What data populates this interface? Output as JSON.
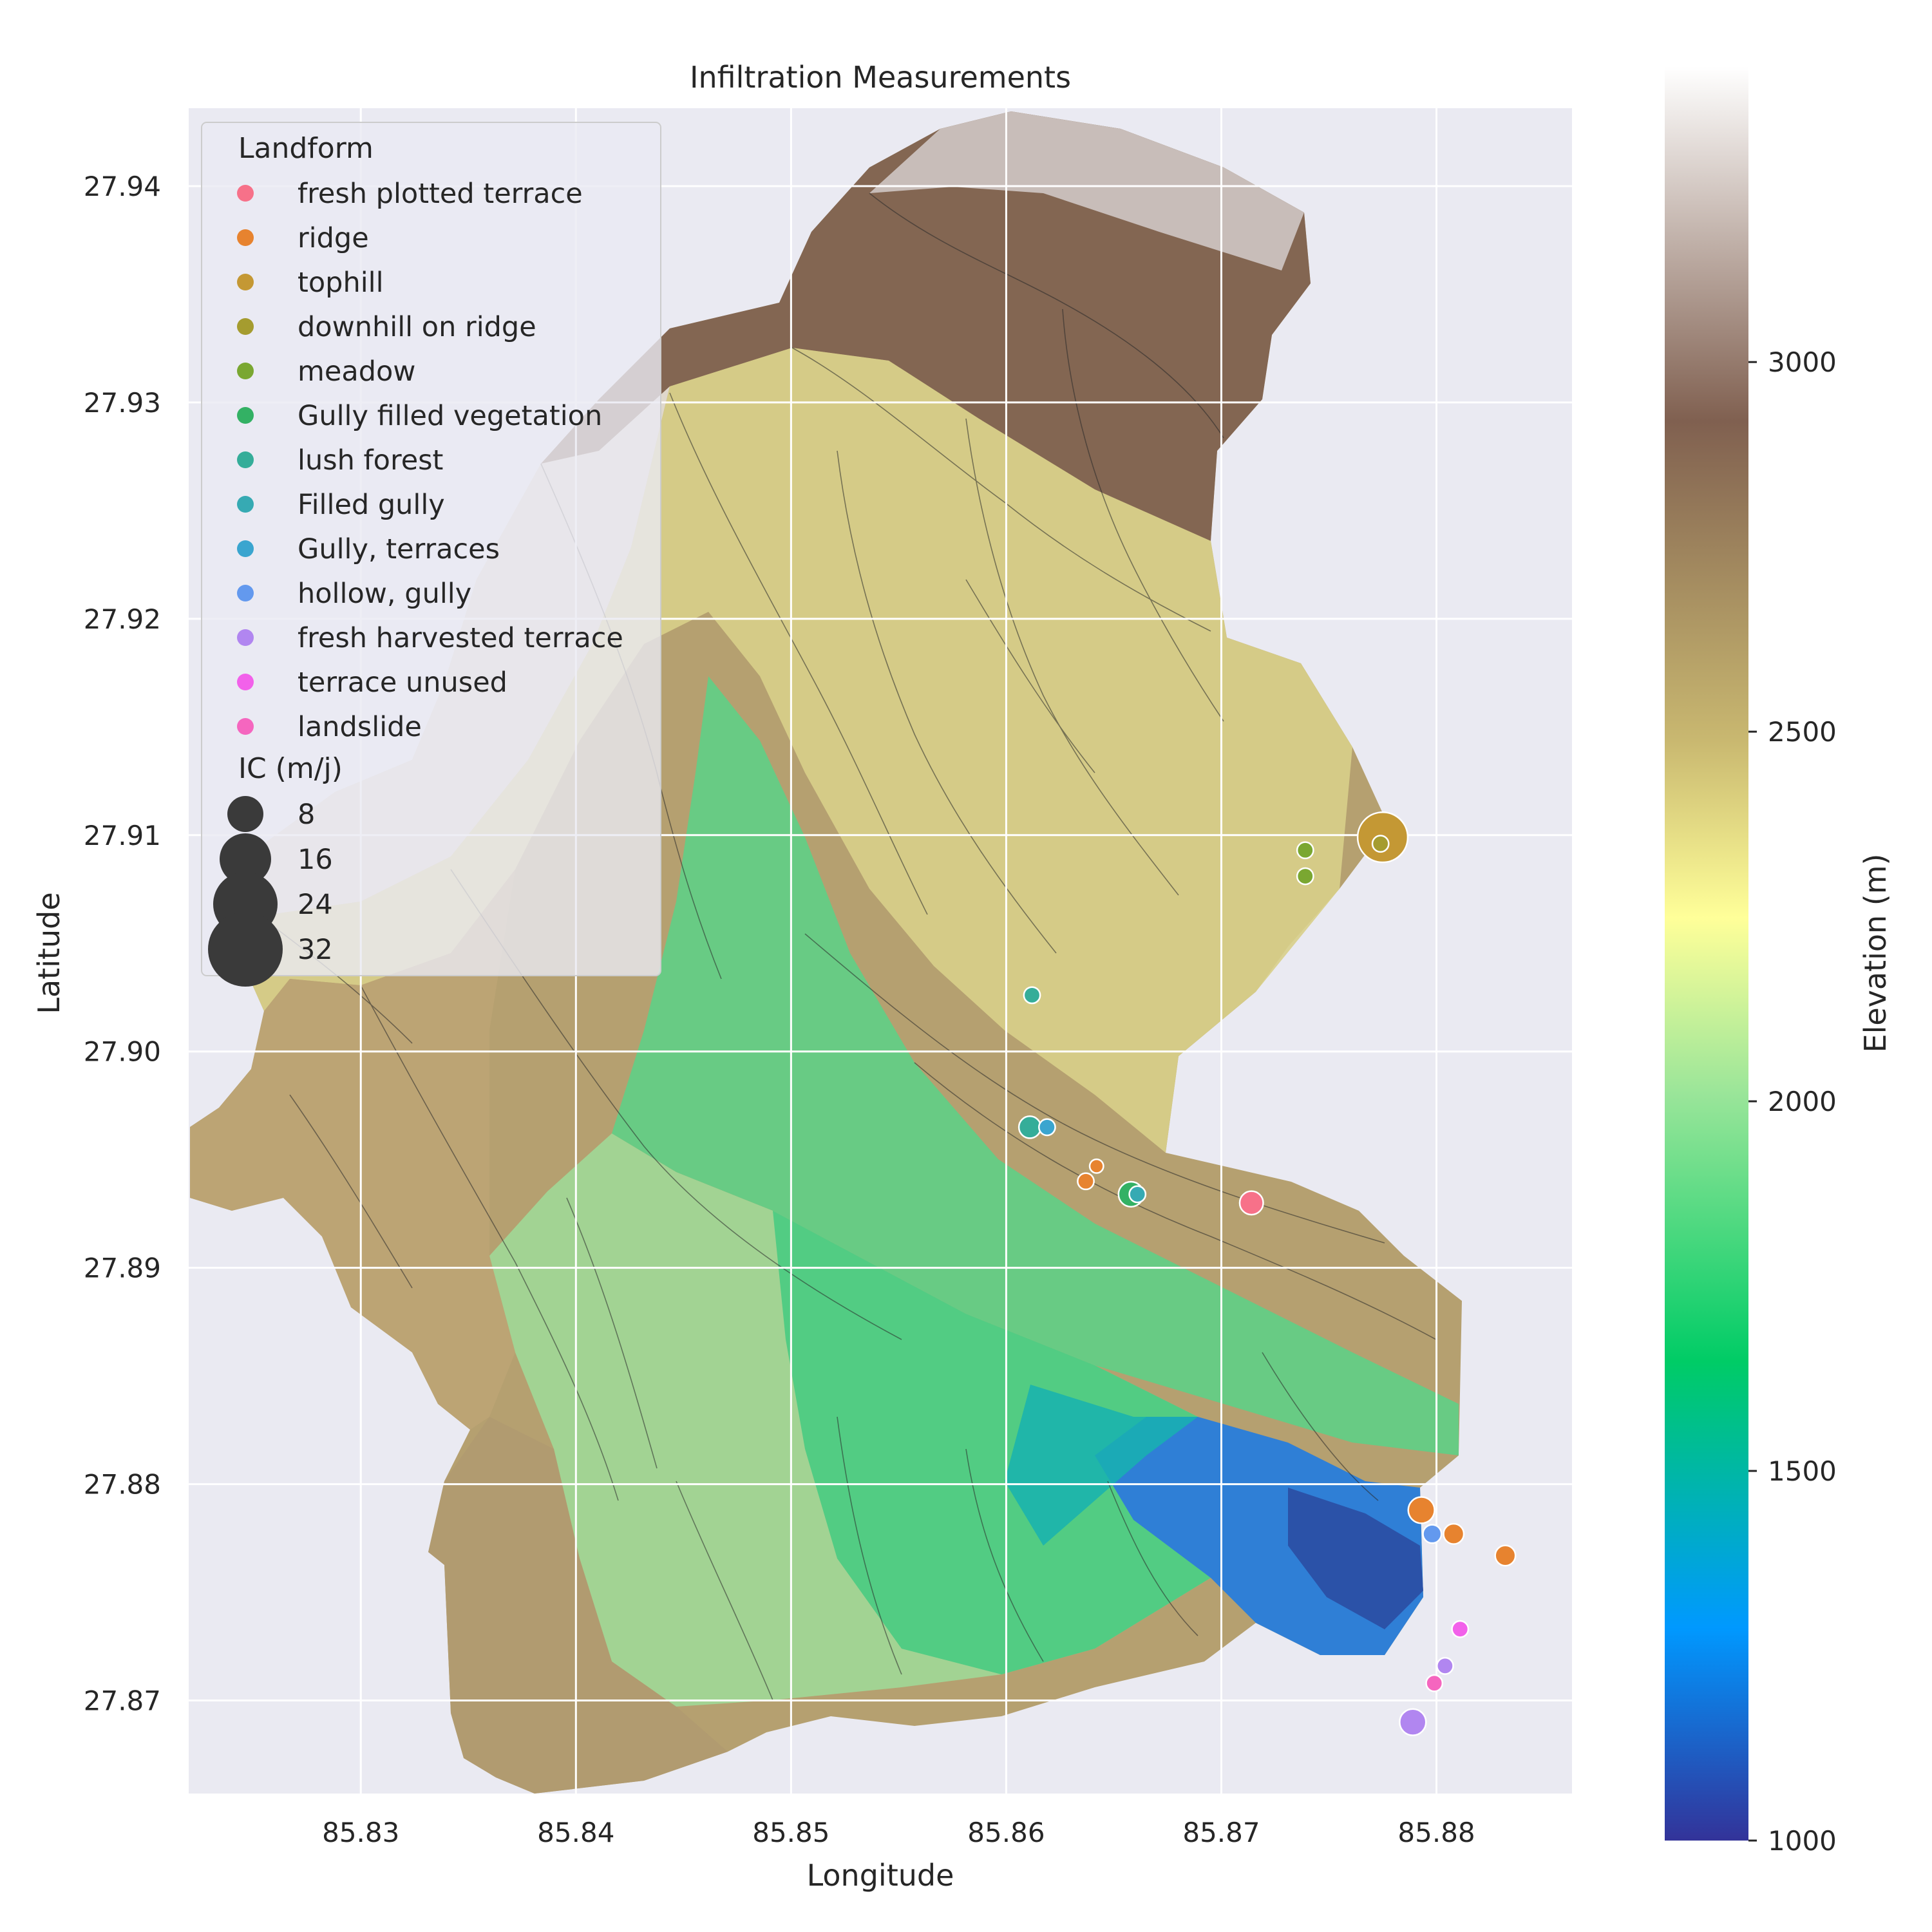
{
  "chart_data": {
    "type": "scatter",
    "title": "Infiltration Measurements",
    "xlabel": "Longitude",
    "ylabel": "Latitude",
    "xlim": [
      85.822,
      85.8863
    ],
    "ylim": [
      27.8657,
      27.9436
    ],
    "xticks": [
      {
        "value": 85.83,
        "label": "85.83"
      },
      {
        "value": 85.84,
        "label": "85.84"
      },
      {
        "value": 85.85,
        "label": "85.85"
      },
      {
        "value": 85.86,
        "label": "85.86"
      },
      {
        "value": 85.87,
        "label": "85.87"
      },
      {
        "value": 85.88,
        "label": "85.88"
      }
    ],
    "yticks": [
      {
        "value": 27.87,
        "label": "27.87"
      },
      {
        "value": 27.88,
        "label": "27.88"
      },
      {
        "value": 27.89,
        "label": "27.89"
      },
      {
        "value": 27.9,
        "label": "27.90"
      },
      {
        "value": 27.91,
        "label": "27.91"
      },
      {
        "value": 27.92,
        "label": "27.92"
      },
      {
        "value": 27.93,
        "label": "27.93"
      },
      {
        "value": 27.94,
        "label": "27.94"
      }
    ],
    "grid": true,
    "background": "elevation raster (terrain colormap, hillshade, contour lines)",
    "colorbar": {
      "label": "Elevation (m)",
      "range": [
        1000,
        3400
      ],
      "ticks": [
        {
          "value": 1000,
          "label": "1000"
        },
        {
          "value": 1500,
          "label": "1500"
        },
        {
          "value": 2000,
          "label": "2000"
        },
        {
          "value": 2500,
          "label": "2500"
        },
        {
          "value": 3000,
          "label": "3000"
        }
      ],
      "colormap": [
        "#333399",
        "#0099ff",
        "#00cc66",
        "#99e599",
        "#ffff99",
        "#806050",
        "#ffffff"
      ]
    },
    "legend": {
      "placement": "upper-left",
      "hue_title": "Landform",
      "size_title": "IC (m/j)",
      "size_entries": [
        {
          "label": "8",
          "value": 8
        },
        {
          "label": "16",
          "value": 16
        },
        {
          "label": "24",
          "value": 24
        },
        {
          "label": "32",
          "value": 32
        }
      ]
    },
    "categories": [
      {
        "name": "fresh plotted terrace",
        "color": "#f77189"
      },
      {
        "name": "ridge",
        "color": "#e7832f"
      },
      {
        "name": "tophill",
        "color": "#c49834"
      },
      {
        "name": "downhill on ridge",
        "color": "#a59c2f"
      },
      {
        "name": "meadow",
        "color": "#7aa731"
      },
      {
        "name": "Gully filled vegetation",
        "color": "#33b164"
      },
      {
        "name": "lush forest",
        "color": "#35ad99"
      },
      {
        "name": "Filled gully",
        "color": "#36aab3"
      },
      {
        "name": "Gully, terraces",
        "color": "#3aa5cf"
      },
      {
        "name": "hollow, gully",
        "color": "#6399ee"
      },
      {
        "name": "fresh harvested terrace",
        "color": "#b186f0"
      },
      {
        "name": "terrace unused",
        "color": "#f261ea"
      },
      {
        "name": "landslide",
        "color": "#f566bf"
      }
    ],
    "points": [
      {
        "lon": 85.8775,
        "lat": 27.9099,
        "landform": "tophill",
        "ic": 36
      },
      {
        "lon": 85.8774,
        "lat": 27.9096,
        "landform": "downhill on ridge",
        "ic": 3
      },
      {
        "lon": 85.8739,
        "lat": 27.9093,
        "landform": "meadow",
        "ic": 3
      },
      {
        "lon": 85.8739,
        "lat": 27.9081,
        "landform": "meadow",
        "ic": 3
      },
      {
        "lon": 85.8612,
        "lat": 27.9026,
        "landform": "lush forest",
        "ic": 3
      },
      {
        "lon": 85.8611,
        "lat": 27.8965,
        "landform": "lush forest",
        "ic": 6
      },
      {
        "lon": 85.8619,
        "lat": 27.8965,
        "landform": "Gully, terraces",
        "ic": 3
      },
      {
        "lon": 85.8642,
        "lat": 27.8947,
        "landform": "ridge",
        "ic": 2
      },
      {
        "lon": 85.8637,
        "lat": 27.894,
        "landform": "ridge",
        "ic": 3
      },
      {
        "lon": 85.8658,
        "lat": 27.8934,
        "landform": "Gully filled vegetation",
        "ic": 8
      },
      {
        "lon": 85.8661,
        "lat": 27.8934,
        "landform": "Filled gully",
        "ic": 3
      },
      {
        "lon": 85.8714,
        "lat": 27.893,
        "landform": "fresh plotted terrace",
        "ic": 7
      },
      {
        "lon": 85.8793,
        "lat": 27.8788,
        "landform": "ridge",
        "ic": 9
      },
      {
        "lon": 85.8808,
        "lat": 27.8777,
        "landform": "ridge",
        "ic": 5
      },
      {
        "lon": 85.8798,
        "lat": 27.8777,
        "landform": "hollow, gully",
        "ic": 4
      },
      {
        "lon": 85.8832,
        "lat": 27.8767,
        "landform": "ridge",
        "ic": 5
      },
      {
        "lon": 85.8811,
        "lat": 27.8733,
        "landform": "terrace unused",
        "ic": 3
      },
      {
        "lon": 85.8804,
        "lat": 27.8716,
        "landform": "fresh harvested terrace",
        "ic": 3
      },
      {
        "lon": 85.8799,
        "lat": 27.8708,
        "landform": "landslide",
        "ic": 3
      },
      {
        "lon": 85.8789,
        "lat": 27.869,
        "landform": "fresh harvested terrace",
        "ic": 9
      }
    ]
  }
}
